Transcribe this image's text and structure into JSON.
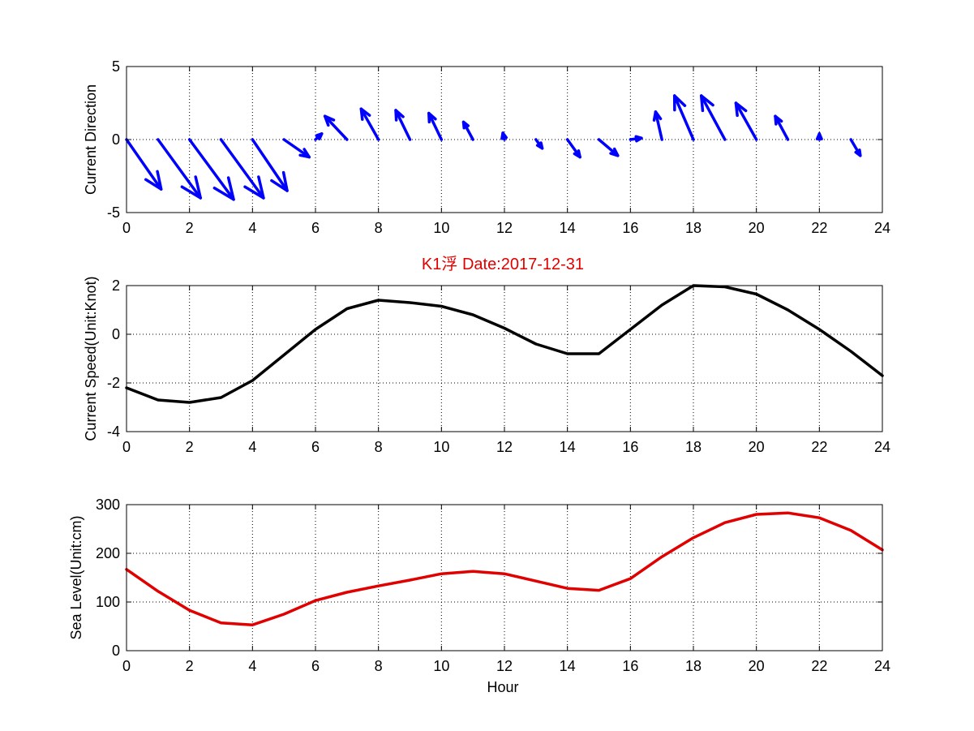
{
  "colors": {
    "quiver": "#0000ff",
    "speed": "#000000",
    "sea_level": "#e00000",
    "title": "#e00000",
    "grid": "#000000",
    "axis": "#000000"
  },
  "chart_data": [
    {
      "id": "current-direction",
      "type": "quiver",
      "title": "",
      "xlabel": "",
      "ylabel": "Current Direction",
      "xlim": [
        0,
        24
      ],
      "ylim": [
        -5,
        5
      ],
      "xticks": [
        0,
        2,
        4,
        6,
        8,
        10,
        12,
        14,
        16,
        18,
        20,
        22,
        24
      ],
      "yticks": [
        -5,
        0,
        5
      ],
      "grid": true,
      "series": [
        {
          "values": [
            {
              "x": 0,
              "u": 1.1,
              "v": -3.4
            },
            {
              "x": 1,
              "u": 1.35,
              "v": -4.0
            },
            {
              "x": 2,
              "u": 1.4,
              "v": -4.1
            },
            {
              "x": 3,
              "u": 1.35,
              "v": -4.0
            },
            {
              "x": 4,
              "u": 1.1,
              "v": -3.5
            },
            {
              "x": 5,
              "u": 0.8,
              "v": -1.2
            },
            {
              "x": 6,
              "u": 0.2,
              "v": 0.4
            },
            {
              "x": 7,
              "u": -0.7,
              "v": 1.6
            },
            {
              "x": 8,
              "u": -0.55,
              "v": 2.1
            },
            {
              "x": 9,
              "u": -0.45,
              "v": 2.0
            },
            {
              "x": 10,
              "u": -0.4,
              "v": 1.8
            },
            {
              "x": 11,
              "u": -0.3,
              "v": 1.2
            },
            {
              "x": 12,
              "u": -0.05,
              "v": 0.45
            },
            {
              "x": 13,
              "u": 0.2,
              "v": -0.6
            },
            {
              "x": 14,
              "u": 0.4,
              "v": -1.2
            },
            {
              "x": 15,
              "u": 0.6,
              "v": -1.1
            },
            {
              "x": 16,
              "u": 0.35,
              "v": 0.1
            },
            {
              "x": 17,
              "u": -0.2,
              "v": 1.9
            },
            {
              "x": 18,
              "u": -0.6,
              "v": 3.0
            },
            {
              "x": 19,
              "u": -0.75,
              "v": 3.0
            },
            {
              "x": 20,
              "u": -0.65,
              "v": 2.5
            },
            {
              "x": 21,
              "u": -0.4,
              "v": 1.6
            },
            {
              "x": 22,
              "u": 0.0,
              "v": 0.4
            },
            {
              "x": 23,
              "u": 0.3,
              "v": -1.1
            }
          ]
        }
      ]
    },
    {
      "id": "current-speed",
      "type": "line",
      "title": "K1浮    Date:2017-12-31",
      "xlabel": "",
      "ylabel": "Current Speed(Unit:Knot)",
      "xlim": [
        0,
        24
      ],
      "ylim": [
        -4,
        2
      ],
      "xticks": [
        0,
        2,
        4,
        6,
        8,
        10,
        12,
        14,
        16,
        18,
        20,
        22,
        24
      ],
      "yticks": [
        -4,
        -2,
        0,
        2
      ],
      "grid": true,
      "x": [
        0,
        1,
        2,
        3,
        4,
        5,
        6,
        7,
        8,
        9,
        10,
        11,
        12,
        13,
        14,
        15,
        16,
        17,
        18,
        19,
        20,
        21,
        22,
        23,
        24
      ],
      "series": [
        {
          "values": [
            -2.2,
            -2.7,
            -2.8,
            -2.6,
            -1.9,
            -0.85,
            0.2,
            1.05,
            1.4,
            1.3,
            1.15,
            0.8,
            0.25,
            -0.4,
            -0.8,
            -0.8,
            0.2,
            1.2,
            2.0,
            1.95,
            1.65,
            1.0,
            0.2,
            -0.7,
            -1.7
          ]
        }
      ]
    },
    {
      "id": "sea-level",
      "type": "line",
      "title": "",
      "xlabel": "Hour",
      "ylabel": "Sea Level(Unit:cm)",
      "xlim": [
        0,
        24
      ],
      "ylim": [
        0,
        300
      ],
      "xticks": [
        0,
        2,
        4,
        6,
        8,
        10,
        12,
        14,
        16,
        18,
        20,
        22,
        24
      ],
      "yticks": [
        0,
        100,
        200,
        300
      ],
      "grid": true,
      "x": [
        0,
        1,
        2,
        3,
        4,
        5,
        6,
        7,
        8,
        9,
        10,
        11,
        12,
        13,
        14,
        15,
        16,
        17,
        18,
        19,
        20,
        21,
        22,
        23,
        24
      ],
      "series": [
        {
          "values": [
            167,
            122,
            83,
            57,
            53,
            75,
            103,
            120,
            133,
            145,
            158,
            163,
            158,
            143,
            128,
            124,
            148,
            193,
            232,
            263,
            280,
            283,
            273,
            247,
            207
          ]
        }
      ]
    }
  ]
}
